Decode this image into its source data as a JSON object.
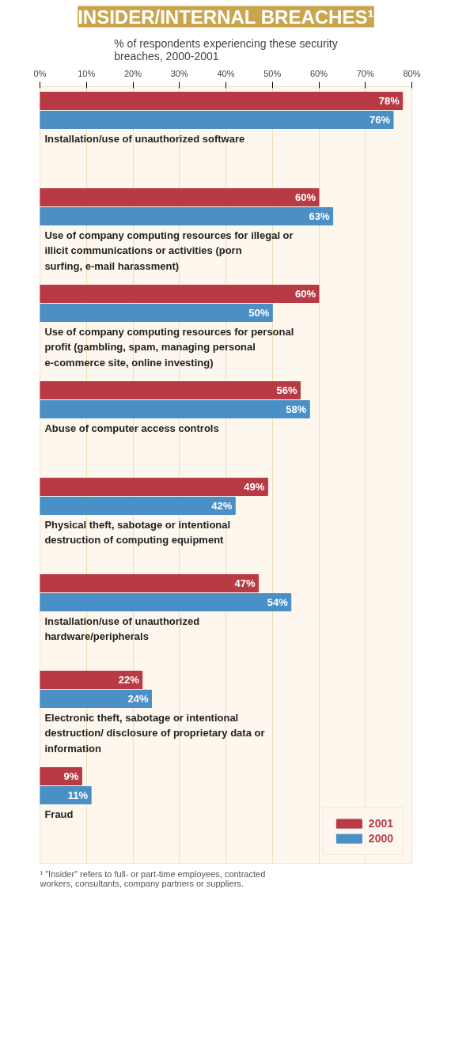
{
  "chart_data": {
    "type": "bar",
    "orientation": "horizontal",
    "title": "INSIDER/INTERNAL BREACHES¹",
    "subtitle": "% of respondents experiencing these security breaches, 2000-2001",
    "categories": [
      "Installation/use of unauthorized software",
      "Use of company computing resources for illegal or illicit communications or activities (porn surfing, e-mail harassment)",
      "Use of company computing resources for personal profit (gambling, spam, managing personal e-commerce site, online investing)",
      "Abuse of computer access controls",
      "Physical theft, sabotage or intentional destruction of computing equipment",
      "Installation/use of unauthorized hardware/peripherals",
      "Electronic theft, sabotage or intentional destruction/ disclosure of proprietary data or information",
      "Fraud"
    ],
    "series": [
      {
        "name": "2001",
        "color": "#b83a44",
        "values": [
          78,
          60,
          60,
          56,
          49,
          47,
          22,
          9
        ],
        "value_labels": [
          "78%",
          "60%",
          "60%",
          "56%",
          "49%",
          "47%",
          "22%",
          "9%"
        ]
      },
      {
        "name": "2000",
        "color": "#4a8fc6",
        "values": [
          76,
          63,
          50,
          58,
          42,
          54,
          24,
          11
        ],
        "value_labels": [
          "76%",
          "63%",
          "50%",
          "58%",
          "42%",
          "54%",
          "24%",
          "11%"
        ]
      }
    ],
    "xlim": [
      0,
      80
    ],
    "xticks": [
      {
        "value": 0,
        "label": "0%"
      },
      {
        "value": 10,
        "label": "10%"
      },
      {
        "value": 20,
        "label": "20%"
      },
      {
        "value": 30,
        "label": "30%"
      },
      {
        "value": 40,
        "label": "40%"
      },
      {
        "value": 50,
        "label": "50%"
      },
      {
        "value": 60,
        "label": "60%"
      },
      {
        "value": 70,
        "label": "70%"
      },
      {
        "value": 80,
        "label": "80%"
      }
    ],
    "grid": "x",
    "legend": "bottom right",
    "tick_labels": "x",
    "annotations": [
      "¹ \"Insider\" refers to full- or part-time employees, contracted workers, consultants, company partners or suppliers."
    ]
  }
}
